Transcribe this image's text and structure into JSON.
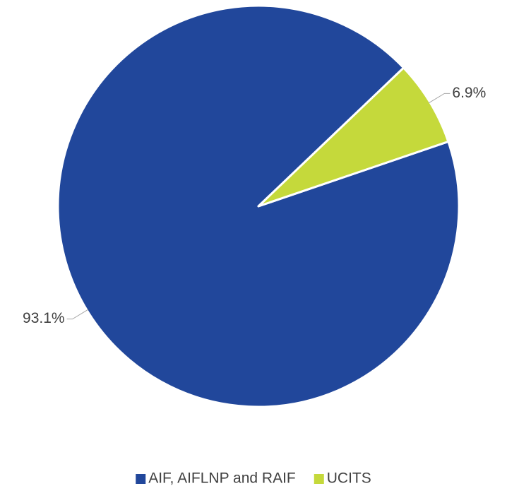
{
  "chart_data": {
    "type": "pie",
    "categories": [
      "AIF, AIFLNP and RAIF",
      "UCITS"
    ],
    "values": [
      93.1,
      6.9
    ],
    "value_labels": [
      "93.1%",
      "6.9%"
    ],
    "colors": [
      "#21479b",
      "#c5d93b"
    ],
    "legend": "bottom"
  }
}
